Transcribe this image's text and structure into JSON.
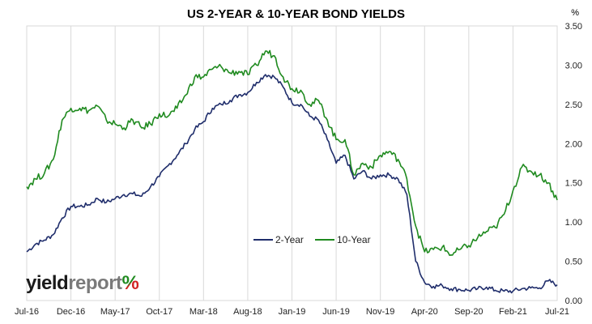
{
  "chart_data": {
    "type": "line",
    "title": "US 2-YEAR & 10-YEAR BOND YIELDS",
    "y_unit": "%",
    "ylim": [
      0,
      3.5
    ],
    "y_ticks": [
      "0.00",
      "0.50",
      "1.00",
      "1.50",
      "2.00",
      "2.50",
      "3.00",
      "3.50"
    ],
    "x_tick_labels": [
      "Jul-16",
      "Dec-16",
      "May-17",
      "Oct-17",
      "Mar-18",
      "Aug-18",
      "Jan-19",
      "Jun-19",
      "Nov-19",
      "Apr-20",
      "Sep-20",
      "Feb-21",
      "Jul-21"
    ],
    "x_range": [
      "2016-07",
      "2021-07"
    ],
    "grid": "vertical",
    "legend_position": "center",
    "series": [
      {
        "name": "2-Year",
        "color": "#1f2d6b",
        "x": [
          "2016-07",
          "2016-08",
          "2016-09",
          "2016-10",
          "2016-11",
          "2016-12",
          "2017-01",
          "2017-02",
          "2017-03",
          "2017-04",
          "2017-05",
          "2017-06",
          "2017-07",
          "2017-08",
          "2017-09",
          "2017-10",
          "2017-11",
          "2017-12",
          "2018-01",
          "2018-02",
          "2018-03",
          "2018-04",
          "2018-05",
          "2018-06",
          "2018-07",
          "2018-08",
          "2018-09",
          "2018-10",
          "2018-11",
          "2018-12",
          "2019-01",
          "2019-02",
          "2019-03",
          "2019-04",
          "2019-05",
          "2019-06",
          "2019-07",
          "2019-08",
          "2019-09",
          "2019-10",
          "2019-11",
          "2019-12",
          "2020-01",
          "2020-02",
          "2020-03",
          "2020-04",
          "2020-05",
          "2020-06",
          "2020-07",
          "2020-08",
          "2020-09",
          "2020-10",
          "2020-11",
          "2020-12",
          "2021-01",
          "2021-02",
          "2021-03",
          "2021-04",
          "2021-05",
          "2021-06",
          "2021-07"
        ],
        "values": [
          0.62,
          0.72,
          0.77,
          0.84,
          1.05,
          1.2,
          1.2,
          1.22,
          1.3,
          1.25,
          1.3,
          1.35,
          1.36,
          1.33,
          1.45,
          1.58,
          1.72,
          1.85,
          2.0,
          2.18,
          2.28,
          2.45,
          2.5,
          2.55,
          2.62,
          2.65,
          2.78,
          2.88,
          2.85,
          2.72,
          2.52,
          2.5,
          2.35,
          2.3,
          2.05,
          1.75,
          1.85,
          1.55,
          1.65,
          1.55,
          1.6,
          1.6,
          1.55,
          1.35,
          0.5,
          0.23,
          0.18,
          0.19,
          0.15,
          0.14,
          0.13,
          0.15,
          0.17,
          0.13,
          0.12,
          0.12,
          0.15,
          0.16,
          0.16,
          0.25,
          0.2
        ]
      },
      {
        "name": "10-Year",
        "color": "#1f8a1f",
        "x": [
          "2016-07",
          "2016-08",
          "2016-09",
          "2016-10",
          "2016-11",
          "2016-12",
          "2017-01",
          "2017-02",
          "2017-03",
          "2017-04",
          "2017-05",
          "2017-06",
          "2017-07",
          "2017-08",
          "2017-09",
          "2017-10",
          "2017-11",
          "2017-12",
          "2018-01",
          "2018-02",
          "2018-03",
          "2018-04",
          "2018-05",
          "2018-06",
          "2018-07",
          "2018-08",
          "2018-09",
          "2018-10",
          "2018-11",
          "2018-12",
          "2019-01",
          "2019-02",
          "2019-03",
          "2019-04",
          "2019-05",
          "2019-06",
          "2019-07",
          "2019-08",
          "2019-09",
          "2019-10",
          "2019-11",
          "2019-12",
          "2020-01",
          "2020-02",
          "2020-03",
          "2020-04",
          "2020-05",
          "2020-06",
          "2020-07",
          "2020-08",
          "2020-09",
          "2020-10",
          "2020-11",
          "2020-12",
          "2021-01",
          "2021-02",
          "2021-03",
          "2021-04",
          "2021-05",
          "2021-06",
          "2021-07"
        ],
        "values": [
          1.45,
          1.55,
          1.62,
          1.8,
          2.3,
          2.45,
          2.45,
          2.42,
          2.48,
          2.3,
          2.25,
          2.2,
          2.3,
          2.2,
          2.25,
          2.38,
          2.35,
          2.45,
          2.62,
          2.85,
          2.85,
          2.95,
          2.98,
          2.9,
          2.92,
          2.88,
          3.0,
          3.18,
          3.12,
          2.85,
          2.7,
          2.68,
          2.5,
          2.55,
          2.3,
          2.05,
          2.05,
          1.6,
          1.75,
          1.7,
          1.85,
          1.9,
          1.8,
          1.55,
          0.95,
          0.62,
          0.65,
          0.68,
          0.58,
          0.65,
          0.7,
          0.8,
          0.88,
          0.93,
          1.1,
          1.4,
          1.7,
          1.65,
          1.6,
          1.5,
          1.28
        ]
      }
    ]
  },
  "logo": {
    "word1": "yield",
    "word2": "report",
    "symbol": "%",
    "symbol_colors": [
      "#1f8a1f",
      "#d22222"
    ]
  }
}
